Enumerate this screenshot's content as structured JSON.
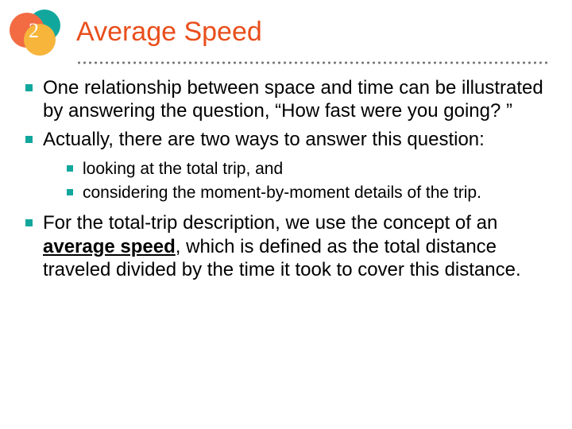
{
  "header": {
    "chapter_number": "2",
    "title": "Average Speed",
    "title_color": "#e94e1b",
    "badge_colors": {
      "a": "#f26b43",
      "b": "#12a79d",
      "c": "#f7b53c"
    }
  },
  "bullet_color": "#12a79d",
  "bullets": [
    {
      "text": "One relationship between space and time can be illustrated by answering the question, “How fast were you going? ”"
    },
    {
      "text": "Actually, there are two ways to answer this question:"
    },
    {
      "text_before": "For the total-trip description, we use the concept of an ",
      "bold_underlined": "average speed",
      "text_after": ", which is defined as the total distance traveled divided by the time it took to cover this distance."
    }
  ],
  "sub_bullets": [
    {
      "text": "looking at the total trip, and"
    },
    {
      "text": "considering the moment-by-moment details of the trip."
    }
  ]
}
